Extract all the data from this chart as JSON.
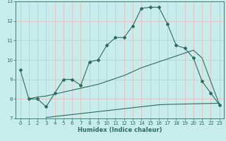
{
  "title": "",
  "xlabel": "Humidex (Indice chaleur)",
  "ylabel": "",
  "bg_color": "#c8ecec",
  "grid_color": "#e8b8b8",
  "line_color": "#2d6b5e",
  "spine_color": "#2d6b5e",
  "xlim": [
    -0.5,
    23.5
  ],
  "ylim": [
    7,
    13
  ],
  "yticks": [
    7,
    8,
    9,
    10,
    11,
    12,
    13
  ],
  "xticks": [
    0,
    1,
    2,
    3,
    4,
    5,
    6,
    7,
    8,
    9,
    10,
    11,
    12,
    13,
    14,
    15,
    16,
    17,
    18,
    19,
    20,
    21,
    22,
    23
  ],
  "line1_x": [
    0,
    1,
    2,
    3,
    4,
    5,
    6,
    7,
    8,
    9,
    10,
    11,
    12,
    13,
    14,
    15,
    16,
    17,
    18,
    19,
    20,
    21,
    22,
    23
  ],
  "line1_y": [
    9.5,
    8.0,
    8.0,
    7.6,
    8.3,
    9.0,
    9.0,
    8.7,
    9.9,
    10.0,
    10.75,
    11.15,
    11.15,
    11.75,
    12.65,
    12.7,
    12.7,
    11.85,
    10.75,
    10.6,
    10.1,
    8.9,
    8.3,
    7.7
  ],
  "line2_x": [
    1,
    2,
    3,
    4,
    5,
    6,
    7,
    8,
    9,
    10,
    11,
    12,
    13,
    14,
    15,
    16,
    17,
    18,
    19,
    20,
    21,
    22,
    23
  ],
  "line2_y": [
    8.0,
    8.1,
    8.15,
    8.25,
    8.35,
    8.45,
    8.55,
    8.65,
    8.75,
    8.9,
    9.05,
    9.2,
    9.4,
    9.6,
    9.75,
    9.9,
    10.05,
    10.2,
    10.35,
    10.5,
    10.1,
    8.9,
    7.7
  ],
  "line3_x": [
    3,
    4,
    5,
    6,
    7,
    8,
    9,
    10,
    11,
    12,
    13,
    14,
    15,
    16,
    17,
    18,
    19,
    20,
    21,
    22,
    23
  ],
  "line3_y": [
    7.05,
    7.1,
    7.15,
    7.2,
    7.25,
    7.3,
    7.35,
    7.4,
    7.45,
    7.5,
    7.55,
    7.6,
    7.65,
    7.7,
    7.72,
    7.73,
    7.74,
    7.75,
    7.76,
    7.77,
    7.78
  ],
  "tick_fontsize": 5.0,
  "xlabel_fontsize": 6.0,
  "marker_size": 2.0,
  "linewidth": 0.8
}
